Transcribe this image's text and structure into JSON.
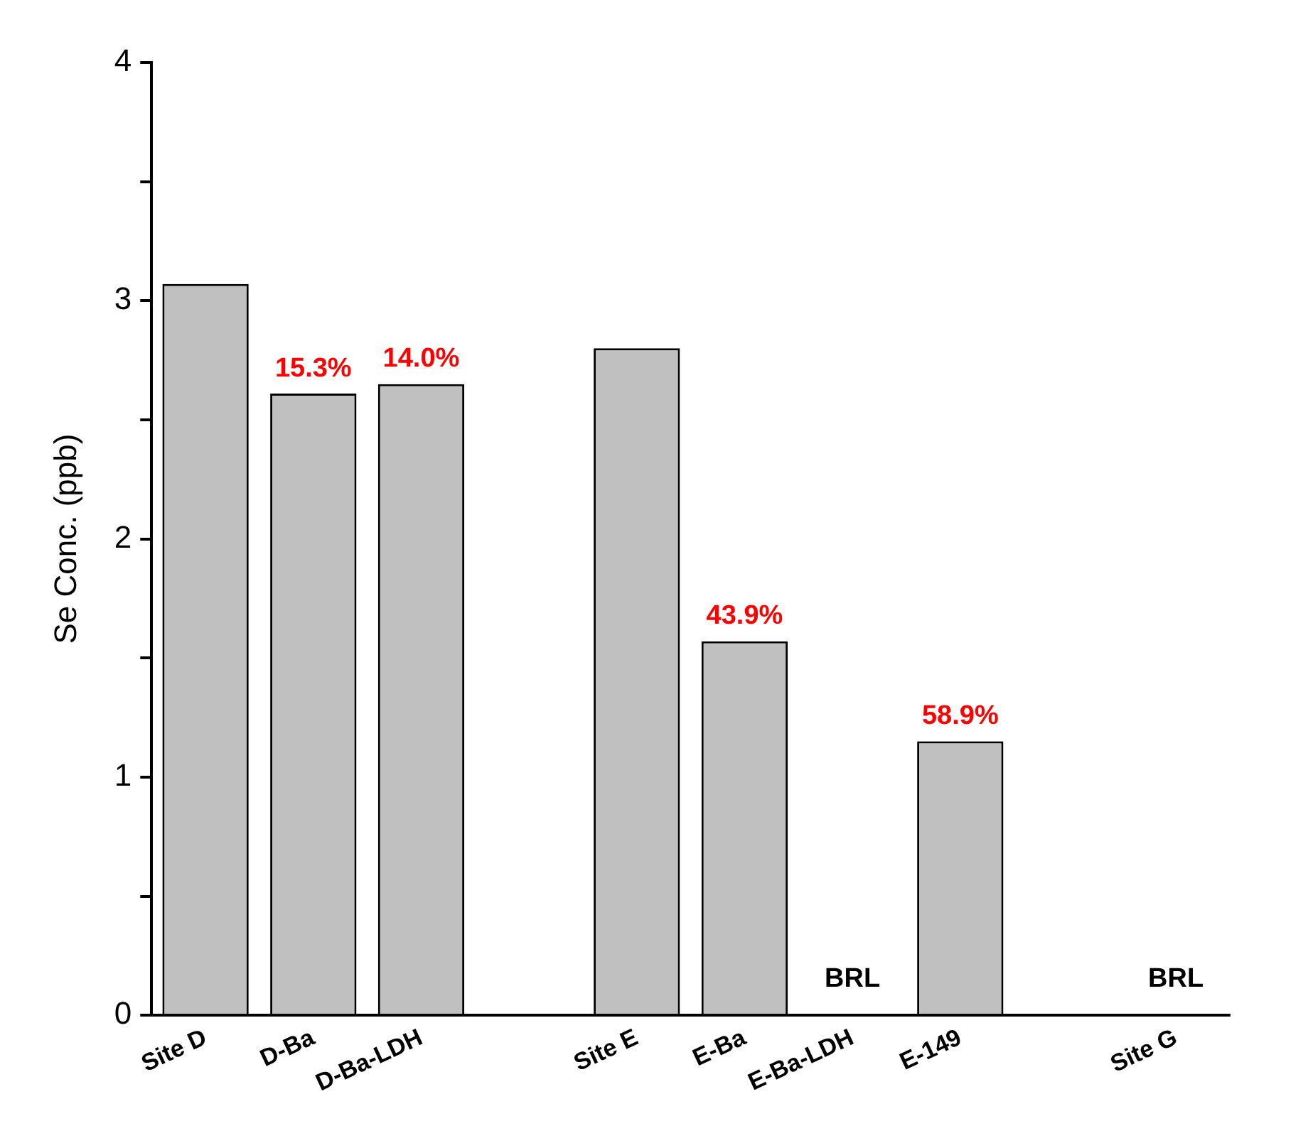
{
  "chart_data": {
    "type": "bar",
    "ylabel": "Se Conc. (ppb)",
    "categories": [
      "Site D",
      "D-Ba",
      "D-Ba-LDH",
      null,
      "Site E",
      "E-Ba",
      "E-Ba-LDH",
      "E-149",
      null,
      "Site G"
    ],
    "values": [
      3.07,
      2.61,
      2.65,
      null,
      2.8,
      1.57,
      0,
      1.15,
      null,
      0
    ],
    "color": "#c0c0c0",
    "ylim": [
      0,
      4
    ],
    "yticks": [
      0,
      {
        "value": 0.5,
        "label": null
      },
      1,
      {
        "value": 1.5,
        "label": null
      },
      2,
      {
        "value": 2.5,
        "label": null
      },
      3,
      {
        "value": 3.5,
        "label": null
      },
      4
    ],
    "annotations": [
      {
        "text": "15.3%",
        "x": "D-Ba",
        "y": 2.61
      },
      {
        "text": "14.0%",
        "x": "D-Ba-LDH",
        "y": 2.65
      },
      {
        "text": "43.9%",
        "x": "E-Ba",
        "y": 1.57
      },
      {
        "text": "BRL",
        "x": "E-Ba-LDH",
        "y": 0
      },
      {
        "text": "58.9%",
        "x": "E-149",
        "y": 1.15
      },
      {
        "text": "BRL",
        "x": "Site G",
        "y": 0
      }
    ],
    "grid": false,
    "legend": false
  }
}
